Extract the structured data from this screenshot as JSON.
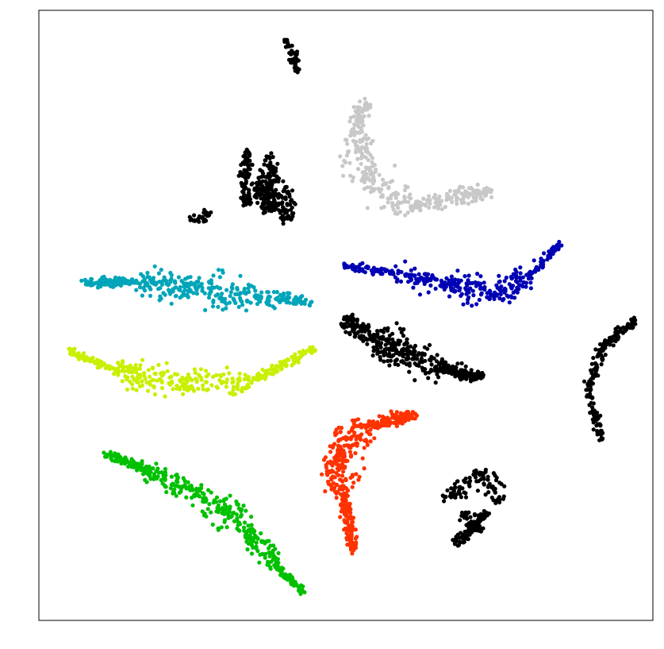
{
  "chart_data": {
    "type": "scatter",
    "title": "",
    "xlabel": "",
    "ylabel": "",
    "xlim": [
      0,
      100
    ],
    "ylim": [
      0,
      100
    ],
    "grid": false,
    "legend": "none",
    "axis_ticks": false,
    "series": [
      {
        "color": "#000000",
        "count": 40,
        "strokes": [
          [
            40.3,
            95.6,
            41.1,
            93.6
          ],
          [
            41.1,
            93.6,
            41.7,
            91.4
          ],
          [
            41.7,
            91.4,
            42.3,
            89.6
          ]
        ],
        "halfwidth": [
          0.8,
          0.9,
          0.7
        ]
      },
      {
        "color": "#c8c8c8",
        "count": 380,
        "strokes": [
          [
            53.4,
            85.0,
            51.2,
            79.5
          ],
          [
            51.2,
            79.5,
            53.4,
            72.0
          ],
          [
            53.4,
            72.0,
            61.2,
            67.8
          ],
          [
            61.2,
            67.8,
            73.3,
            70.3
          ]
        ],
        "halfwidth": [
          1.4,
          2.8,
          2.8,
          1.3
        ]
      },
      {
        "color": "#000000",
        "count": 330,
        "strokes": [
          [
            33.8,
            77.0,
            34.0,
            67.8
          ],
          [
            37.5,
            76.0,
            38.3,
            67.4
          ],
          [
            40.5,
            71.0,
            40.0,
            64.9
          ],
          [
            35.5,
            72.0,
            37.5,
            66.5
          ]
        ],
        "halfwidth": [
          1.1,
          1.3,
          1.4,
          1.5
        ]
      },
      {
        "color": "#000000",
        "count": 30,
        "strokes": [
          [
            24.5,
            65.6,
            28.0,
            66.7
          ]
        ],
        "halfwidth": [
          0.8
        ]
      },
      {
        "color": "#0000b4",
        "count": 360,
        "strokes": [
          [
            49.4,
            58.2,
            57.3,
            57.1
          ],
          [
            57.3,
            57.1,
            66.0,
            55.3
          ],
          [
            66.0,
            55.3,
            74.5,
            53.4
          ],
          [
            74.5,
            53.4,
            79.9,
            56.6
          ],
          [
            79.9,
            56.6,
            84.9,
            61.7
          ]
        ],
        "halfwidth": [
          0.6,
          1.8,
          2.3,
          2.0,
          0.7
        ]
      },
      {
        "color": "#00a5b9",
        "count": 380,
        "strokes": [
          [
            7.1,
            55.4,
            15.9,
            55.4
          ],
          [
            15.9,
            55.4,
            26.5,
            54.5
          ],
          [
            26.5,
            54.5,
            35.4,
            52.9
          ],
          [
            35.4,
            52.9,
            44.3,
            52.3
          ]
        ],
        "halfwidth": [
          0.7,
          2.2,
          2.7,
          1.2
        ]
      },
      {
        "color": "#000000",
        "count": 400,
        "strokes": [
          [
            49.6,
            49.1,
            54.5,
            46.4
          ],
          [
            54.5,
            46.4,
            60.7,
            43.3
          ],
          [
            60.7,
            43.3,
            66.0,
            41.2
          ],
          [
            66.0,
            41.2,
            72.5,
            40.0
          ]
        ],
        "halfwidth": [
          1.5,
          2.8,
          2.5,
          1.0
        ]
      },
      {
        "color": "#000000",
        "count": 180,
        "strokes": [
          [
            97.1,
            49.2,
            92.0,
            45.0
          ],
          [
            92.0,
            45.0,
            89.3,
            37.4
          ],
          [
            89.3,
            37.4,
            91.5,
            29.8
          ]
        ],
        "halfwidth": [
          0.8,
          0.9,
          0.7
        ]
      },
      {
        "color": "#c8f000",
        "count": 380,
        "strokes": [
          [
            4.6,
            44.3,
            12.2,
            41.2
          ],
          [
            12.2,
            41.2,
            23.5,
            38.8
          ],
          [
            23.5,
            38.8,
            34.6,
            39.2
          ],
          [
            34.6,
            39.2,
            45.0,
            44.7
          ]
        ],
        "halfwidth": [
          0.6,
          2.2,
          2.2,
          0.8
        ]
      },
      {
        "color": "#ff3200",
        "count": 420,
        "strokes": [
          [
            61.4,
            33.8,
            53.5,
            31.8
          ],
          [
            53.5,
            31.8,
            47.8,
            27.1
          ],
          [
            47.8,
            27.1,
            49.7,
            20.4
          ],
          [
            49.7,
            20.4,
            51.2,
            11.4
          ]
        ],
        "halfwidth": [
          1.0,
          2.8,
          3.0,
          1.0
        ]
      },
      {
        "color": "#00c000",
        "count": 420,
        "strokes": [
          [
            10.4,
            27.3,
            16.3,
            25.3
          ],
          [
            16.3,
            25.3,
            25.4,
            20.8
          ],
          [
            25.4,
            20.8,
            34.0,
            15.1
          ],
          [
            34.0,
            15.1,
            38.7,
            9.0
          ],
          [
            38.7,
            9.0,
            43.0,
            4.5
          ]
        ],
        "halfwidth": [
          0.6,
          1.7,
          2.4,
          1.7,
          0.7
        ]
      },
      {
        "color": "#000000",
        "count": 220,
        "strokes": [
          [
            65.8,
            20.1,
            70.3,
            22.9
          ],
          [
            71.5,
            24.7,
            75.3,
            19.6
          ],
          [
            73.0,
            17.8,
            67.6,
            12.2
          ],
          [
            68.9,
            17.5,
            72.0,
            14.8
          ]
        ],
        "halfwidth": [
          1.5,
          1.6,
          1.0,
          1.0
        ]
      }
    ]
  }
}
